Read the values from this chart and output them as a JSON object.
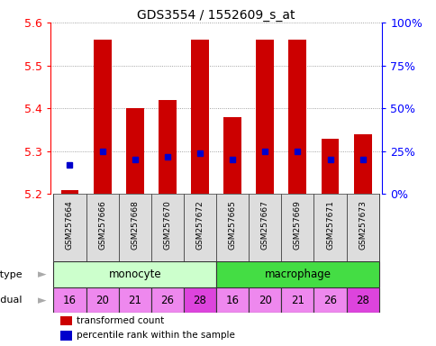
{
  "title": "GDS3554 / 1552609_s_at",
  "samples": [
    "GSM257664",
    "GSM257666",
    "GSM257668",
    "GSM257670",
    "GSM257672",
    "GSM257665",
    "GSM257667",
    "GSM257669",
    "GSM257671",
    "GSM257673"
  ],
  "transformed_count": [
    5.21,
    5.56,
    5.4,
    5.42,
    5.56,
    5.38,
    5.56,
    5.56,
    5.33,
    5.34
  ],
  "percentile_rank": [
    17,
    25,
    20,
    22,
    24,
    20,
    25,
    25,
    20,
    20
  ],
  "ylim": [
    5.2,
    5.6
  ],
  "yticks": [
    5.2,
    5.3,
    5.4,
    5.5,
    5.6
  ],
  "y2lim": [
    0,
    100
  ],
  "y2ticks": [
    0,
    25,
    50,
    75,
    100
  ],
  "y2ticklabels": [
    "0%",
    "25%",
    "50%",
    "75%",
    "100%"
  ],
  "bar_color": "#cc0000",
  "dot_color": "#0000cc",
  "bar_bottom": 5.2,
  "cell_groups": [
    {
      "label": "monocyte",
      "start": 0,
      "end": 4,
      "color": "#ccffcc"
    },
    {
      "label": "macrophage",
      "start": 5,
      "end": 9,
      "color": "#44dd44"
    }
  ],
  "individuals": [
    16,
    20,
    21,
    26,
    28,
    16,
    20,
    21,
    26,
    28
  ],
  "individual_color": "#ee88ee",
  "individual_highlight_indices": [
    4,
    9
  ],
  "individual_highlight_color": "#dd44dd",
  "grid_color": "#888888",
  "bg_color": "#ffffff",
  "sample_box_color": "#dddddd",
  "legend_red": "transformed count",
  "legend_blue": "percentile rank within the sample",
  "label_arrow_color": "#aaaaaa"
}
